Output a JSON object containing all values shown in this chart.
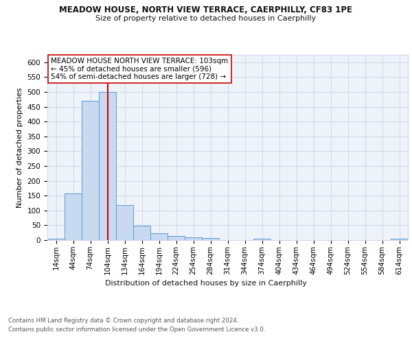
{
  "title1": "MEADOW HOUSE, NORTH VIEW TERRACE, CAERPHILLY, CF83 1PE",
  "title2": "Size of property relative to detached houses in Caerphilly",
  "xlabel": "Distribution of detached houses by size in Caerphilly",
  "ylabel": "Number of detached properties",
  "bin_labels": [
    "14sqm",
    "44sqm",
    "74sqm",
    "104sqm",
    "134sqm",
    "164sqm",
    "194sqm",
    "224sqm",
    "254sqm",
    "284sqm",
    "314sqm",
    "344sqm",
    "374sqm",
    "404sqm",
    "434sqm",
    "464sqm",
    "494sqm",
    "524sqm",
    "554sqm",
    "584sqm",
    "614sqm"
  ],
  "bin_values": [
    5,
    158,
    470,
    500,
    118,
    48,
    22,
    14,
    10,
    8,
    0,
    0,
    5,
    0,
    0,
    0,
    0,
    0,
    0,
    0,
    5
  ],
  "bar_color": "#c8d9f0",
  "bar_edge_color": "#5b9bd5",
  "grid_color": "#d0d8e8",
  "bg_color": "#eef2f9",
  "vline_x": 3,
  "vline_color": "#cc0000",
  "annotation_text": "MEADOW HOUSE NORTH VIEW TERRACE: 103sqm\n← 45% of detached houses are smaller (596)\n54% of semi-detached houses are larger (728) →",
  "annotation_box_color": "#ffffff",
  "annotation_box_edge": "#cc0000",
  "footer1": "Contains HM Land Registry data © Crown copyright and database right 2024.",
  "footer2": "Contains public sector information licensed under the Open Government Licence v3.0.",
  "ylim": [
    0,
    625
  ],
  "yticks": [
    0,
    50,
    100,
    150,
    200,
    250,
    300,
    350,
    400,
    450,
    500,
    550,
    600
  ]
}
